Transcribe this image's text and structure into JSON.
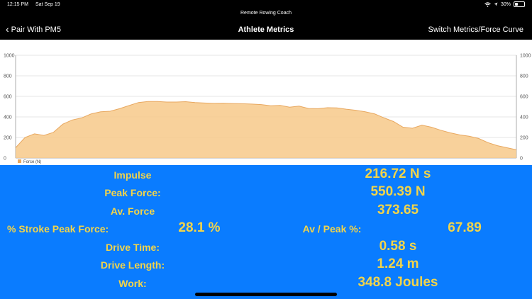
{
  "status_bar": {
    "time": "12:15 PM",
    "date": "Sat Sep 19",
    "battery": "30%",
    "battery_level": 0.3
  },
  "app_title": "Remote Rowing Coach",
  "nav": {
    "back_label": "Pair With PM5",
    "title": "Athlete Metrics",
    "right_label": "Switch Metrics/Force Curve"
  },
  "chart_data": {
    "type": "area",
    "title": "",
    "xlabel": "",
    "ylabel": "",
    "ylim": [
      0,
      1000
    ],
    "yticks": [
      0,
      200,
      400,
      600,
      800,
      1000
    ],
    "y_tick_labels": [
      "0",
      "200",
      "400",
      "600",
      "800",
      "1000"
    ],
    "grid": true,
    "legend_position": "bottom-left",
    "color": "#f7c98a",
    "line_color": "#e8a860",
    "series": [
      {
        "name": "Force (N)",
        "values": [
          100,
          200,
          235,
          220,
          250,
          330,
          370,
          390,
          430,
          450,
          455,
          480,
          510,
          540,
          550,
          550,
          545,
          545,
          548,
          540,
          535,
          532,
          533,
          530,
          528,
          525,
          520,
          508,
          512,
          495,
          505,
          482,
          480,
          490,
          488,
          475,
          465,
          450,
          430,
          390,
          355,
          300,
          290,
          320,
          300,
          270,
          245,
          225,
          212,
          190,
          150,
          120,
          100,
          80
        ]
      }
    ]
  },
  "metrics": {
    "impulse_label": "Impulse",
    "impulse_value": "216.72 N s",
    "peak_force_label": "Peak Force:",
    "peak_force_value": "550.39 N",
    "av_force_label": "Av. Force",
    "av_force_value": "373.65",
    "stroke_peak_label": "% Stroke Peak Force:",
    "stroke_peak_value": "28.1 %",
    "av_peak_label": "Av / Peak %:",
    "av_peak_value": "67.89",
    "drive_time_label": "Drive Time:",
    "drive_time_value": "0.58 s",
    "drive_length_label": "Drive Length:",
    "drive_length_value": "1.24 m",
    "work_label": "Work:",
    "work_value": "348.8 Joules"
  }
}
